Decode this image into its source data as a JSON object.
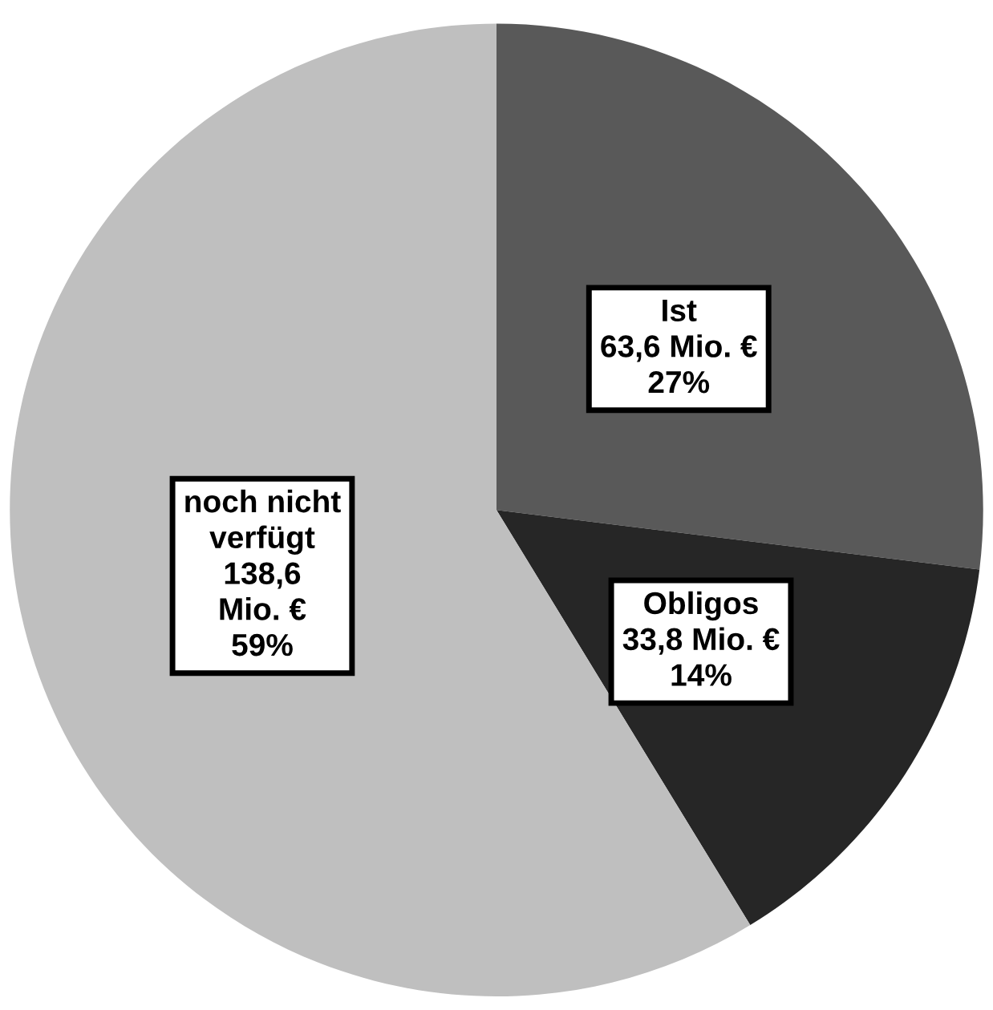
{
  "chart_data": {
    "type": "pie",
    "categories": [
      "Ist",
      "Obligos",
      "noch nicht\nverfügt"
    ],
    "values": [
      63.6,
      33.8,
      138.6
    ],
    "colors": [
      "#595959",
      "#262626",
      "#bfbfbf"
    ],
    "value_labels": [
      "63,6 Mio. €\n27%",
      "33,8 Mio. €\n14%",
      "138,6\nMio. €\n59%"
    ],
    "legend": false
  }
}
